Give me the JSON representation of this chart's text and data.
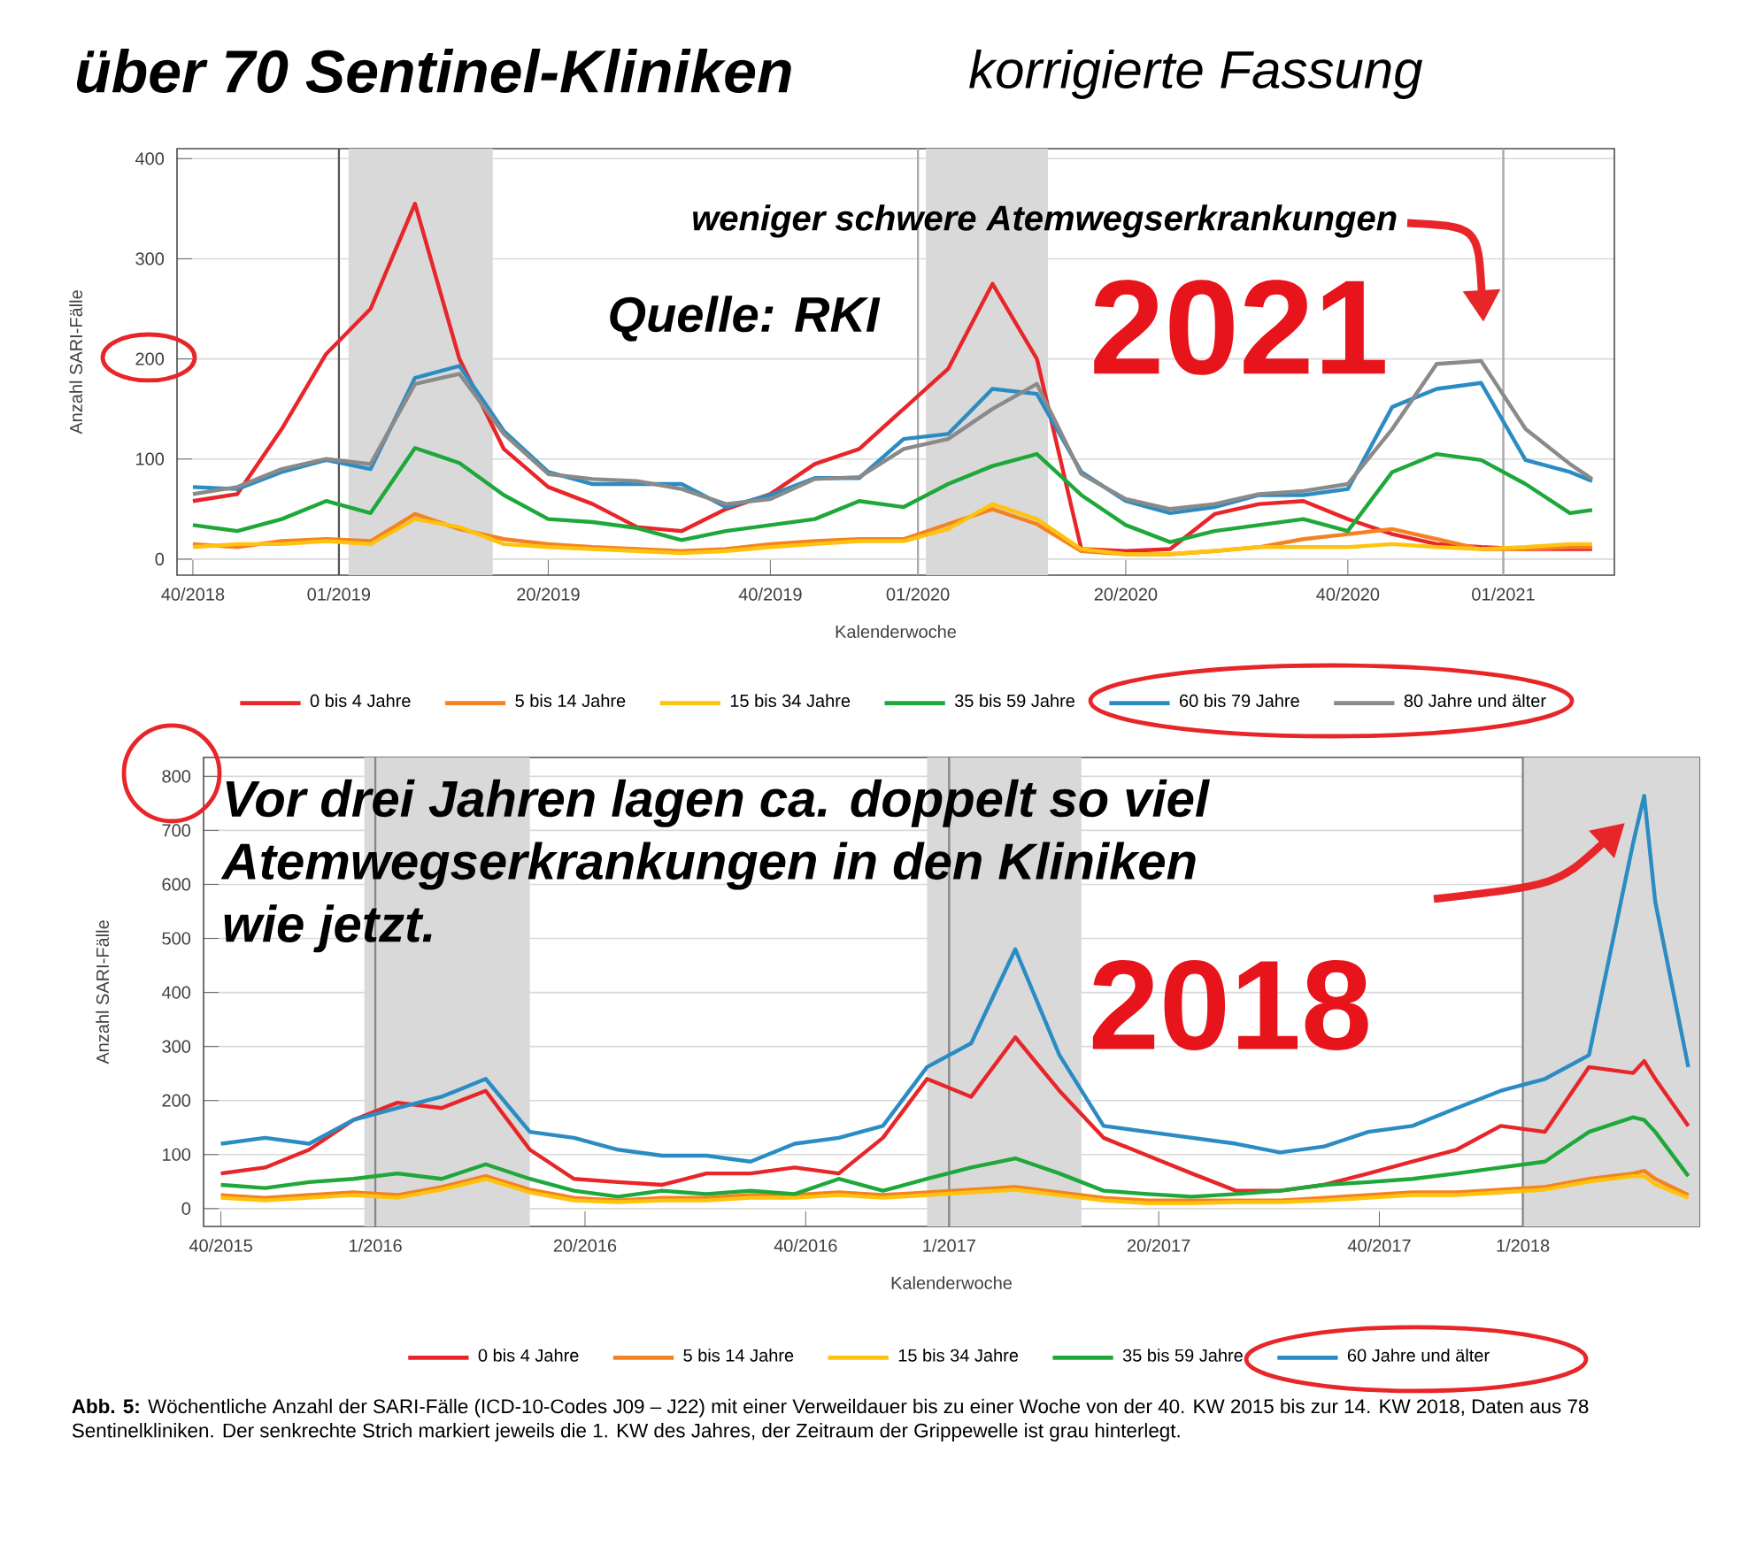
{
  "chart_data": [
    {
      "type": "line",
      "title": "über 70 Sentinel-Kliniken",
      "subtitle": "korrigierte Fassung",
      "xlabel": "Kalenderwoche",
      "ylabel": "Anzahl SARI-Fälle",
      "annotations": [
        "weniger schwere Atemwegserkrankungen",
        "Quelle: RKI",
        "2021"
      ],
      "x": [
        "2018-10-01",
        "2018-10-29",
        "2018-11-26",
        "2018-12-24",
        "2019-01-21",
        "2019-02-18",
        "2019-03-18",
        "2019-04-15",
        "2019-05-13",
        "2019-06-10",
        "2019-07-08",
        "2019-08-05",
        "2019-09-02",
        "2019-09-30",
        "2019-10-28",
        "2019-11-25",
        "2019-12-23",
        "2020-01-20",
        "2020-02-17",
        "2020-03-16",
        "2020-04-13",
        "2020-05-11",
        "2020-06-08",
        "2020-07-06",
        "2020-08-03",
        "2020-08-31",
        "2020-09-28",
        "2020-10-26",
        "2020-11-23",
        "2020-12-21",
        "2021-01-18",
        "2021-02-15",
        "2021-03-01"
      ],
      "series": [
        {
          "name": "0 bis 4 Jahre",
          "color": "#e8262a",
          "values": [
            58,
            65,
            130,
            205,
            250,
            355,
            200,
            110,
            72,
            55,
            32,
            28,
            50,
            65,
            95,
            110,
            150,
            190,
            275,
            200,
            10,
            8,
            10,
            45,
            55,
            58,
            40,
            25,
            15,
            12,
            10,
            10,
            10
          ]
        },
        {
          "name": "5 bis 14 Jahre",
          "color": "#f58220",
          "values": [
            15,
            12,
            18,
            20,
            18,
            45,
            30,
            20,
            15,
            12,
            10,
            8,
            10,
            15,
            18,
            20,
            20,
            35,
            50,
            35,
            8,
            5,
            5,
            8,
            12,
            20,
            25,
            30,
            20,
            10,
            10,
            12,
            12
          ]
        },
        {
          "name": "15 bis 34 Jahre",
          "color": "#ffc20e",
          "values": [
            12,
            15,
            15,
            18,
            15,
            40,
            32,
            15,
            12,
            10,
            8,
            6,
            8,
            12,
            15,
            18,
            18,
            30,
            55,
            40,
            10,
            5,
            5,
            8,
            12,
            12,
            12,
            15,
            12,
            10,
            12,
            15,
            15
          ]
        },
        {
          "name": "35 bis 59 Jahre",
          "color": "#1fa83a",
          "values": [
            34,
            28,
            40,
            58,
            46,
            111,
            96,
            64,
            40,
            37,
            31,
            19,
            28,
            34,
            40,
            58,
            52,
            75,
            93,
            105,
            64,
            34,
            17,
            28,
            34,
            40,
            28,
            87,
            105,
            99,
            75,
            46,
            49
          ]
        },
        {
          "name": "60 bis 79 Jahre",
          "color": "#2b8cc4",
          "values": [
            72,
            70,
            87,
            99,
            90,
            181,
            193,
            128,
            87,
            75,
            75,
            75,
            52,
            64,
            81,
            81,
            120,
            125,
            170,
            165,
            87,
            58,
            46,
            52,
            64,
            64,
            70,
            152,
            170,
            176,
            99,
            87,
            78
          ]
        },
        {
          "name": "80 Jahre und älter",
          "color": "#8a8a8a",
          "values": [
            65,
            72,
            90,
            100,
            95,
            175,
            185,
            125,
            85,
            80,
            78,
            70,
            55,
            60,
            80,
            82,
            110,
            120,
            150,
            175,
            85,
            60,
            50,
            55,
            65,
            68,
            75,
            130,
            195,
            198,
            130,
            95,
            80
          ]
        }
      ],
      "xlim": [
        "2018-09-21",
        "2021-03-15"
      ],
      "xticks": [
        {
          "value": "2018-10-01",
          "label": "40/2018"
        },
        {
          "value": "2019-01-01",
          "label": "01/2019"
        },
        {
          "value": "2019-05-13",
          "label": "20/2019"
        },
        {
          "value": "2019-09-30",
          "label": "40/2019"
        },
        {
          "value": "2020-01-01",
          "label": "01/2020"
        },
        {
          "value": "2020-05-11",
          "label": "20/2020"
        },
        {
          "value": "2020-09-28",
          "label": "40/2020"
        },
        {
          "value": "2021-01-04",
          "label": "01/2021"
        }
      ],
      "ylim": [
        -16,
        410
      ],
      "yticks": [
        0,
        100,
        200,
        300,
        400
      ],
      "bands": [
        {
          "axis": "x",
          "from": "2019-01-07",
          "to": "2019-04-08",
          "color": "#d9d9d9"
        },
        {
          "axis": "x",
          "from": "2020-01-06",
          "to": "2020-03-23",
          "color": "#d9d9d9"
        }
      ],
      "ref_lines": [
        {
          "axis": "x",
          "value": "2019-01-01",
          "color": "#555555"
        },
        {
          "axis": "x",
          "value": "2020-01-01",
          "color": "#aaaaaa"
        },
        {
          "axis": "x",
          "value": "2021-01-04",
          "color": "#aaaaaa"
        }
      ],
      "grid": "y",
      "legend": "bottom"
    },
    {
      "type": "line",
      "xlabel": "Kalenderwoche",
      "ylabel": "Anzahl SARI-Fälle",
      "annotations": [
        "Vor drei Jahren lagen ca. doppelt so viel Atemwegserkrankungen in den Kliniken wie jetzt.",
        "2018",
        "**Abb. 5:** Wöchentliche Anzahl der SARI-Fälle (ICD-10-Codes J09 – J22) mit einer Verweildauer bis zu einer Woche von der 40. KW 2015 bis zur 14. KW 2018, Daten aus 78 Sentinelkliniken. Der senkrechte Strich markiert jeweils die 1. KW des Jahres, der Zeitraum der Grippewelle ist grau hinterlegt."
      ],
      "x": [
        "2015-09-28",
        "2015-10-26",
        "2015-11-23",
        "2015-12-21",
        "2016-01-18",
        "2016-02-15",
        "2016-03-14",
        "2016-04-11",
        "2016-05-09",
        "2016-06-06",
        "2016-07-04",
        "2016-08-01",
        "2016-08-29",
        "2016-09-26",
        "2016-10-24",
        "2016-11-21",
        "2016-12-19",
        "2017-01-16",
        "2017-02-13",
        "2017-03-13",
        "2017-04-10",
        "2017-05-08",
        "2017-06-05",
        "2017-07-03",
        "2017-07-31",
        "2017-08-28",
        "2017-09-25",
        "2017-10-23",
        "2017-11-20",
        "2017-12-18",
        "2018-01-15",
        "2018-02-12",
        "2018-03-12",
        "2018-03-19",
        "2018-03-26",
        "2018-04-16"
      ],
      "series": [
        {
          "name": "0 bis 4 Jahre",
          "color": "#e8262a",
          "values": [
            65,
            76,
            109,
            164,
            196,
            186,
            218,
            109,
            55,
            49,
            44,
            65,
            65,
            76,
            65,
            131,
            240,
            207,
            317,
            218,
            131,
            98,
            65,
            33,
            33,
            44,
            65,
            87,
            109,
            153,
            142,
            262,
            251,
            273,
            240,
            153
          ]
        },
        {
          "name": "5 bis 14 Jahre",
          "color": "#f58220",
          "values": [
            25,
            20,
            25,
            30,
            25,
            40,
            60,
            35,
            20,
            15,
            20,
            20,
            25,
            25,
            30,
            25,
            30,
            35,
            40,
            30,
            20,
            15,
            15,
            15,
            15,
            20,
            25,
            30,
            30,
            35,
            40,
            55,
            65,
            70,
            55,
            25
          ]
        },
        {
          "name": "15 bis 34 Jahre",
          "color": "#ffc20e",
          "values": [
            20,
            15,
            20,
            25,
            20,
            35,
            55,
            30,
            15,
            12,
            15,
            15,
            20,
            20,
            25,
            20,
            25,
            30,
            35,
            25,
            15,
            10,
            10,
            12,
            12,
            15,
            20,
            25,
            25,
            30,
            35,
            50,
            60,
            60,
            45,
            20
          ]
        },
        {
          "name": "35 bis 59 Jahre",
          "color": "#1fa83a",
          "values": [
            44,
            38,
            49,
            55,
            65,
            55,
            82,
            55,
            33,
            22,
            33,
            27,
            33,
            27,
            55,
            33,
            55,
            76,
            93,
            65,
            33,
            27,
            22,
            27,
            33,
            44,
            49,
            55,
            65,
            76,
            87,
            142,
            169,
            164,
            142,
            60
          ]
        },
        {
          "name": "60 Jahre und älter",
          "color": "#2b8cc4",
          "values": [
            120,
            131,
            120,
            164,
            186,
            207,
            240,
            142,
            131,
            109,
            98,
            98,
            87,
            120,
            131,
            153,
            262,
            306,
            480,
            284,
            153,
            142,
            131,
            120,
            104,
            115,
            142,
            153,
            186,
            218,
            240,
            284,
            677,
            764,
            568,
            262
          ]
        }
      ],
      "xlim": [
        "2015-09-17",
        "2018-04-23"
      ],
      "xticks": [
        {
          "value": "2015-09-28",
          "label": "40/2015"
        },
        {
          "value": "2016-01-04",
          "label": "1/2016"
        },
        {
          "value": "2016-05-16",
          "label": "20/2016"
        },
        {
          "value": "2016-10-03",
          "label": "40/2016"
        },
        {
          "value": "2017-01-02",
          "label": "1/2017"
        },
        {
          "value": "2017-05-15",
          "label": "20/2017"
        },
        {
          "value": "2017-10-02",
          "label": "40/2017"
        },
        {
          "value": "2018-01-01",
          "label": "1/2018"
        }
      ],
      "ylim": [
        -33,
        835
      ],
      "yticks": [
        0,
        100,
        200,
        300,
        400,
        500,
        600,
        700,
        800
      ],
      "bands": [
        {
          "axis": "x",
          "from": "2015-12-28",
          "to": "2016-04-11",
          "color": "#d9d9d9"
        },
        {
          "axis": "x",
          "from": "2016-12-19",
          "to": "2017-03-27",
          "color": "#d9d9d9"
        },
        {
          "axis": "x",
          "from": "2018-01-01",
          "to": "2018-04-23",
          "color": "#d9d9d9"
        }
      ],
      "ref_lines": [
        {
          "axis": "x",
          "value": "2016-01-04",
          "color": "#888888"
        },
        {
          "axis": "x",
          "value": "2017-01-02",
          "color": "#888888"
        },
        {
          "axis": "x",
          "value": "2018-01-01",
          "color": "#888888"
        }
      ],
      "grid": "y",
      "legend": "bottom"
    }
  ]
}
